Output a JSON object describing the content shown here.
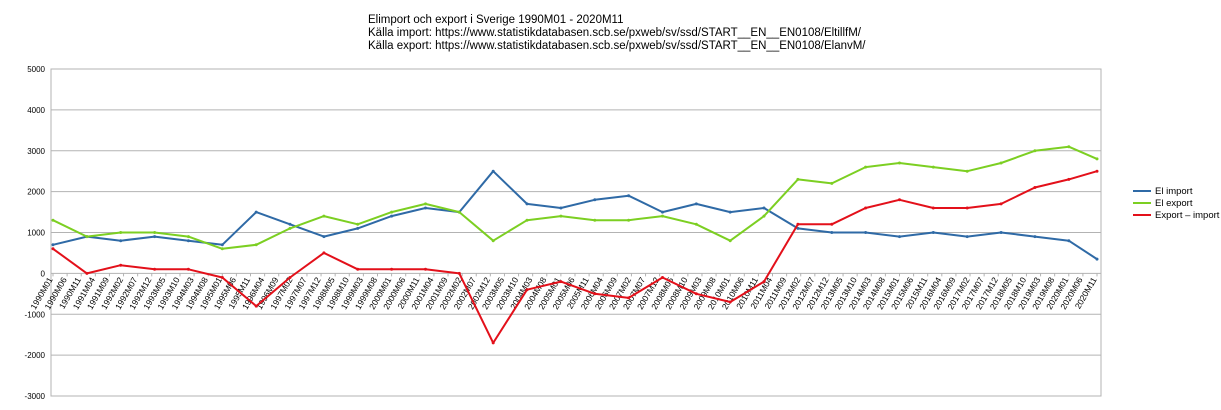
{
  "chart_data": {
    "type": "line",
    "title": "Elimport och export i Sverige 1990M01 - 2020M11",
    "subtitle": [
      "Källa import: https://www.statistikdatabasen.scb.se/pxweb/sv/ssd/START__EN__EN0108/EltillfM/",
      "Källa export: https://www.statistikdatabasen.scb.se/pxweb/sv/ssd/START__EN__EN0108/ElanvM/"
    ],
    "xlabel": "",
    "ylabel": "",
    "ylim": [
      -3000,
      5000
    ],
    "yticks": [
      -3000,
      -2000,
      -1000,
      0,
      1000,
      2000,
      3000,
      4000,
      5000
    ],
    "x_range": [
      "1990M01",
      "2020M11"
    ],
    "x_tick_labels": [
      "1990M01",
      "1990M06",
      "1990M11",
      "1991M04",
      "1991M09",
      "1992M02",
      "1992M07",
      "1992M12",
      "1993M05",
      "1993M10",
      "1994M03",
      "1994M08",
      "1995M01",
      "1995M06",
      "1995M11",
      "1996M04",
      "1996M09",
      "1997M02",
      "1997M07",
      "1997M12",
      "1998M05",
      "1998M10",
      "1999M03",
      "1999M08",
      "2000M01",
      "2000M06",
      "2000M11",
      "2001M04",
      "2001M09",
      "2002M02",
      "2002M07",
      "2002M12",
      "2003M05",
      "2003M10",
      "2004M03",
      "2004M08",
      "2005M01",
      "2005M06",
      "2005M11",
      "2006M04",
      "2006M09",
      "2007M02",
      "2007M07",
      "2007M12",
      "2008M05",
      "2008M10",
      "2009M03",
      "2009M08",
      "2010M01",
      "2010M06",
      "2010M11",
      "2011M04",
      "2011M09",
      "2012M02",
      "2012M07",
      "2012M12",
      "2013M05",
      "2013M10",
      "2014M03",
      "2014M08",
      "2015M01",
      "2015M06",
      "2015M11",
      "2016M04",
      "2016M09",
      "2017M02",
      "2017M07",
      "2017M12",
      "2018M05",
      "2018M10",
      "2019M03",
      "2019M08",
      "2020M01",
      "2020M06",
      "2020M11"
    ],
    "grid": "horizontal",
    "legend_position": "right",
    "series": [
      {
        "name": "El import",
        "color": "#2f6aa6",
        "x": [
          "1990M01",
          "1991M01",
          "1992M01",
          "1993M01",
          "1994M01",
          "1995M01",
          "1996M01",
          "1997M01",
          "1998M01",
          "1999M01",
          "2000M01",
          "2001M01",
          "2002M01",
          "2003M01",
          "2004M01",
          "2005M01",
          "2006M01",
          "2007M01",
          "2008M01",
          "2009M01",
          "2010M01",
          "2011M01",
          "2012M01",
          "2013M01",
          "2014M01",
          "2015M01",
          "2016M01",
          "2017M01",
          "2018M01",
          "2019M01",
          "2020M01",
          "2020M11"
        ],
        "values": [
          700,
          900,
          800,
          900,
          800,
          700,
          1500,
          1200,
          900,
          1100,
          1400,
          1600,
          1500,
          2500,
          1700,
          1600,
          1800,
          1900,
          1500,
          1700,
          1500,
          1600,
          1100,
          1000,
          1000,
          900,
          1000,
          900,
          1000,
          900,
          800,
          350
        ]
      },
      {
        "name": "El export",
        "color": "#7ccf22",
        "x": [
          "1990M01",
          "1991M01",
          "1992M01",
          "1993M01",
          "1994M01",
          "1995M01",
          "1996M01",
          "1997M01",
          "1998M01",
          "1999M01",
          "2000M01",
          "2001M01",
          "2002M01",
          "2003M01",
          "2004M01",
          "2005M01",
          "2006M01",
          "2007M01",
          "2008M01",
          "2009M01",
          "2010M01",
          "2011M01",
          "2012M01",
          "2013M01",
          "2014M01",
          "2015M01",
          "2016M01",
          "2017M01",
          "2018M01",
          "2019M01",
          "2020M01",
          "2020M11"
        ],
        "values": [
          1300,
          900,
          1000,
          1000,
          900,
          600,
          700,
          1100,
          1400,
          1200,
          1500,
          1700,
          1500,
          800,
          1300,
          1400,
          1300,
          1300,
          1400,
          1200,
          800,
          1400,
          2300,
          2200,
          2600,
          2700,
          2600,
          2500,
          2700,
          3000,
          3100,
          2800
        ]
      },
      {
        "name": "Export – import",
        "color": "#e3101a",
        "x": [
          "1990M01",
          "1991M01",
          "1992M01",
          "1993M01",
          "1994M01",
          "1995M01",
          "1996M01",
          "1997M01",
          "1998M01",
          "1999M01",
          "2000M01",
          "2001M01",
          "2002M01",
          "2003M01",
          "2004M01",
          "2005M01",
          "2006M01",
          "2007M01",
          "2008M01",
          "2009M01",
          "2010M01",
          "2011M01",
          "2012M01",
          "2013M01",
          "2014M01",
          "2015M01",
          "2016M01",
          "2017M01",
          "2018M01",
          "2019M01",
          "2020M01",
          "2020M11"
        ],
        "values": [
          600,
          0,
          200,
          100,
          100,
          -100,
          -800,
          -100,
          500,
          100,
          100,
          100,
          0,
          -1700,
          -400,
          -200,
          -500,
          -600,
          -100,
          -500,
          -700,
          -200,
          1200,
          1200,
          1600,
          1800,
          1600,
          1600,
          1700,
          2100,
          2300,
          2500
        ]
      }
    ]
  }
}
